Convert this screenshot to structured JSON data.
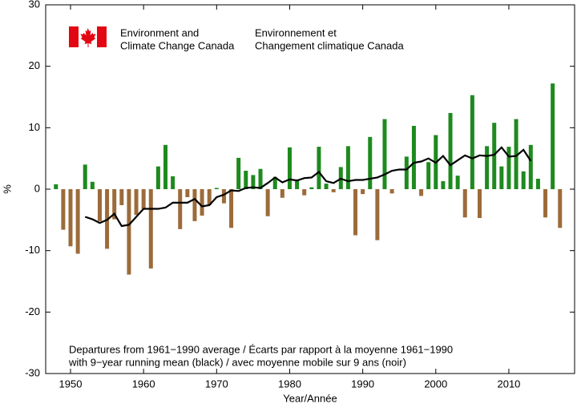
{
  "chart_data": {
    "type": "bar",
    "header": {
      "org_en": [
        "Environment and",
        "Climate Change Canada"
      ],
      "org_fr": [
        "Environnement et",
        "Changement climatique Canada"
      ]
    },
    "ylabel": "%",
    "xlabel": "Year/Année",
    "annotation": [
      "Departures from 1961−1990 average / Écarts par rapport à la moyenne 1961−1990",
      "with 9−year running mean (black)    / avec moyenne mobile sur 9 ans (noir)"
    ],
    "x": [
      1948,
      1949,
      1950,
      1951,
      1952,
      1953,
      1954,
      1955,
      1956,
      1957,
      1958,
      1959,
      1960,
      1961,
      1962,
      1963,
      1964,
      1965,
      1966,
      1967,
      1968,
      1969,
      1970,
      1971,
      1972,
      1973,
      1974,
      1975,
      1976,
      1977,
      1978,
      1979,
      1980,
      1981,
      1982,
      1983,
      1984,
      1985,
      1986,
      1987,
      1988,
      1989,
      1990,
      1991,
      1992,
      1993,
      1994,
      1995,
      1996,
      1997,
      1998,
      1999,
      2000,
      2001,
      2002,
      2003,
      2004,
      2005,
      2006,
      2007,
      2008,
      2009,
      2010,
      2011,
      2012,
      2013,
      2014,
      2015,
      2016,
      2017
    ],
    "series": [
      {
        "type": "bar",
        "color_positive": "#1e8a1e",
        "color_negative": "#9c6b3a",
        "values": [
          0.8,
          -6.6,
          -9.3,
          -10.5,
          4.0,
          1.2,
          -5.2,
          -9.7,
          -4.9,
          -2.6,
          -13.9,
          -4.2,
          -3.2,
          -12.9,
          3.7,
          7.2,
          2.1,
          -6.5,
          -1.3,
          -5.2,
          -4.3,
          -2.6,
          0.2,
          -2.3,
          -6.3,
          5.1,
          3.0,
          2.3,
          3.3,
          -4.4,
          2.0,
          -1.4,
          6.8,
          1.6,
          -1.0,
          0.3,
          6.9,
          0.9,
          -0.5,
          3.6,
          7.0,
          -7.5,
          -0.8,
          8.5,
          -8.3,
          11.4,
          -0.7,
          0.0,
          5.3,
          10.3,
          -1.1,
          4.4,
          8.8,
          1.3,
          12.4,
          2.2,
          -4.6,
          15.3,
          -4.7,
          7.0,
          10.8,
          3.7,
          6.9,
          11.4,
          2.9,
          7.2,
          1.7,
          -4.6,
          17.2,
          -6.3
        ]
      },
      {
        "type": "line",
        "color": "#000000",
        "values": [
          null,
          null,
          null,
          null,
          -4.5,
          -4.9,
          -5.5,
          -5.0,
          -4.0,
          -6.0,
          -5.8,
          -4.5,
          -3.2,
          -3.2,
          -3.2,
          -3.0,
          -2.2,
          -2.2,
          -2.2,
          -1.6,
          -2.8,
          -2.6,
          -1.3,
          -0.9,
          -0.2,
          -0.3,
          0.2,
          0.3,
          0.2,
          1.0,
          1.9,
          1.1,
          1.6,
          1.4,
          1.8,
          1.9,
          2.8,
          1.3,
          1.0,
          1.7,
          1.3,
          1.5,
          1.5,
          1.7,
          1.9,
          2.4,
          3.0,
          3.2,
          3.2,
          4.3,
          4.5,
          5.0,
          4.3,
          5.4,
          3.9,
          4.7,
          5.5,
          5.0,
          5.5,
          5.4,
          5.6,
          6.8,
          5.3,
          5.4,
          6.4,
          4.6,
          null,
          null,
          null,
          null
        ]
      }
    ],
    "xlim": [
      1946.6,
      2019
    ],
    "xticks": [
      1950,
      1960,
      1970,
      1980,
      1990,
      2000,
      2010
    ],
    "ylim": [
      -30,
      30
    ],
    "yticks": [
      -30,
      -20,
      -10,
      0,
      10,
      20,
      30
    ]
  }
}
